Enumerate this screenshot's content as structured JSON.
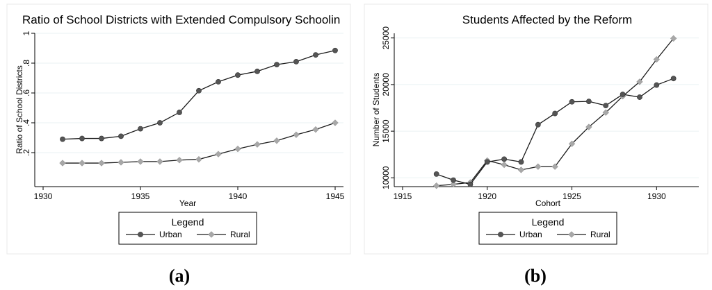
{
  "chart_data": [
    {
      "type": "line",
      "title": "Ratio of School Districts with Extended Compulsory Schoolin",
      "xlabel": "Year",
      "ylabel": "Ratio of School Districts",
      "xlim": [
        1930,
        1945
      ],
      "ylim": [
        0,
        1
      ],
      "x_ticks": [
        "1930",
        "1935",
        "1940",
        "1945"
      ],
      "y_ticks": [
        ".2",
        ".4",
        ".6",
        ".8",
        "1"
      ],
      "x": [
        1931,
        1932,
        1933,
        1934,
        1935,
        1936,
        1937,
        1938,
        1939,
        1940,
        1941,
        1942,
        1943,
        1944,
        1945
      ],
      "series": [
        {
          "name": "Urban",
          "marker": "circle",
          "color": "#555555",
          "values": [
            0.29,
            0.295,
            0.295,
            0.31,
            0.36,
            0.4,
            0.47,
            0.615,
            0.675,
            0.72,
            0.745,
            0.79,
            0.81,
            0.855,
            0.885
          ]
        },
        {
          "name": "Rural",
          "marker": "diamond",
          "color": "#a8a8a8",
          "values": [
            0.13,
            0.13,
            0.13,
            0.135,
            0.14,
            0.14,
            0.15,
            0.155,
            0.19,
            0.225,
            0.255,
            0.28,
            0.32,
            0.355,
            0.4
          ]
        }
      ],
      "legend": {
        "title": "Legend",
        "placement": "bottom"
      },
      "grid": true,
      "panel_label": "(a)"
    },
    {
      "type": "line",
      "title": "Students Affected by the Reform",
      "xlabel": "Cohort",
      "ylabel": "Number of Students",
      "xlim": [
        1915,
        1932
      ],
      "ylim": [
        9500,
        25500
      ],
      "x_ticks": [
        "1915",
        "1920",
        "1925",
        "1930"
      ],
      "y_ticks": [
        "10000",
        "15000",
        "20000",
        "25000"
      ],
      "x": [
        1917,
        1918,
        1919,
        1920,
        1921,
        1922,
        1923,
        1924,
        1925,
        1926,
        1927,
        1928,
        1929,
        1930,
        1931
      ],
      "series": [
        {
          "name": "Urban",
          "marker": "circle",
          "color": "#555555",
          "values": [
            10400,
            9750,
            9300,
            11700,
            12000,
            11700,
            15700,
            16900,
            18150,
            18200,
            17750,
            18950,
            18650,
            19950,
            20650
          ]
        },
        {
          "name": "Rural",
          "marker": "diamond",
          "color": "#a8a8a8",
          "values": [
            9150,
            9300,
            9500,
            11850,
            11400,
            10850,
            11200,
            11200,
            13650,
            15450,
            17000,
            18750,
            20300,
            22700,
            24950
          ]
        }
      ],
      "legend": {
        "title": "Legend",
        "placement": "bottom"
      },
      "grid": true,
      "panel_label": "(b)"
    }
  ]
}
